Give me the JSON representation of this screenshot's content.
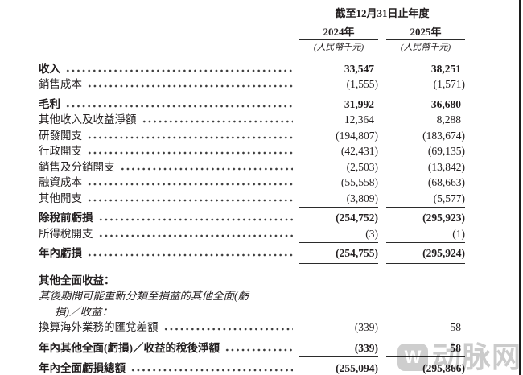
{
  "table": {
    "period_header": "截至12月31日止年度",
    "columns": [
      {
        "year": "2024年",
        "unit": "(人民幣千元)"
      },
      {
        "year": "2025年",
        "unit": "(人民幣千元)"
      }
    ],
    "rows": [
      {
        "label": "收入",
        "v1": "33,547",
        "v2": "38,251"
      },
      {
        "label": "銷售成本",
        "v1": "(1,555)",
        "v2": "(1,571)"
      },
      {
        "label": "毛利",
        "v1": "31,992",
        "v2": "36,680"
      },
      {
        "label": "其他收入及收益淨額",
        "v1": "12,364",
        "v2": "8,288"
      },
      {
        "label": "研發開支",
        "v1": "(194,807)",
        "v2": "(183,674)"
      },
      {
        "label": "行政開支",
        "v1": "(42,431)",
        "v2": "(69,135)"
      },
      {
        "label": "銷售及分銷開支",
        "v1": "(2,503)",
        "v2": "(13,842)"
      },
      {
        "label": "融資成本",
        "v1": "(55,558)",
        "v2": "(68,663)"
      },
      {
        "label": "其他開支",
        "v1": "(3,809)",
        "v2": "(5,577)"
      },
      {
        "label": "除稅前虧損",
        "v1": "(254,752)",
        "v2": "(295,923)"
      },
      {
        "label": "所得稅開支",
        "v1": "(3)",
        "v2": "(1)"
      },
      {
        "label": "年內虧損",
        "v1": "(254,755)",
        "v2": "(295,924)"
      },
      {
        "label": "其他全面收益：",
        "v1": "",
        "v2": ""
      },
      {
        "label": "其後期間可能重新分類至損益的其他全面(虧",
        "v1": "",
        "v2": ""
      },
      {
        "label": "損)／收益：",
        "v1": "",
        "v2": ""
      },
      {
        "label": "換算海外業務的匯兌差額",
        "v1": "(339)",
        "v2": "58"
      },
      {
        "label": "年內其他全面(虧損)／收益的稅後淨額",
        "v1": "(339)",
        "v2": "58"
      },
      {
        "label": "年內全面虧損總額",
        "v1": "(255,094)",
        "v2": "(295,866)"
      }
    ]
  },
  "watermark": {
    "logo_glyph": "W",
    "text": "动脉网"
  }
}
